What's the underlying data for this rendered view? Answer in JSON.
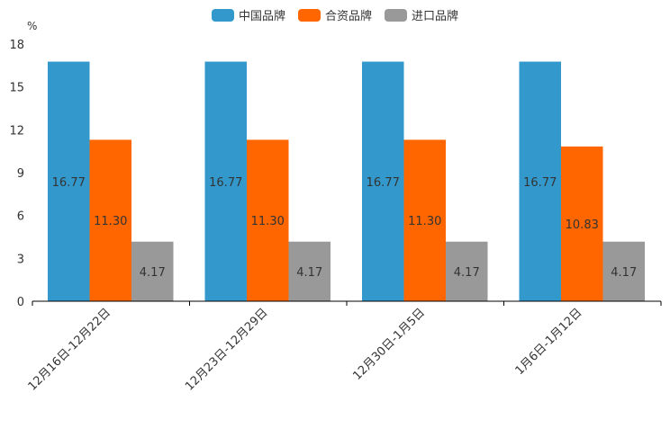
{
  "chart_data": {
    "type": "bar",
    "unit": "%",
    "categories": [
      "12月16日-12月22日",
      "12月23日-12月29日",
      "12月30日-1月5日",
      "1月6日-1月12日"
    ],
    "series": [
      {
        "name": "中国品牌",
        "color": "#3399CC",
        "values": [
          16.77,
          16.77,
          16.77,
          16.77
        ]
      },
      {
        "name": "合资品牌",
        "color": "#FF6600",
        "values": [
          11.3,
          11.3,
          11.3,
          10.83
        ]
      },
      {
        "name": "进口品牌",
        "color": "#999999",
        "values": [
          4.17,
          4.17,
          4.17,
          4.17
        ]
      }
    ],
    "data_labels": [
      [
        "16.77",
        "16.77",
        "16.77",
        "16.77"
      ],
      [
        "11.30",
        "11.30",
        "11.30",
        "10.83"
      ],
      [
        "4.17",
        "4.17",
        "4.17",
        "4.17"
      ]
    ],
    "yticks": [
      "0",
      "3",
      "6",
      "9",
      "12",
      "15",
      "18"
    ],
    "ylim": [
      0,
      18
    ],
    "legend_position": "top-center"
  }
}
